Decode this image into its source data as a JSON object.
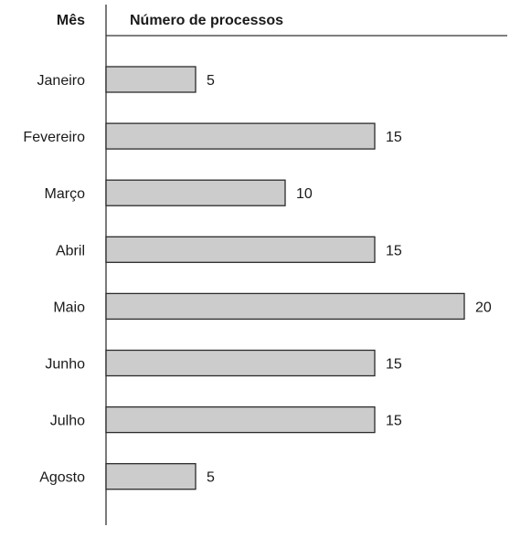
{
  "chart_data": {
    "type": "bar",
    "orientation": "horizontal",
    "category_header": "Mês",
    "value_header": "Número de processos",
    "categories": [
      "Janeiro",
      "Fevereiro",
      "Março",
      "Abril",
      "Maio",
      "Junho",
      "Julho",
      "Agosto"
    ],
    "values": [
      5,
      15,
      10,
      15,
      20,
      15,
      15,
      5
    ],
    "xlim": [
      0,
      20
    ],
    "grid": false,
    "legend": "none",
    "bar_color": "#cccccc",
    "bar_edge_color": "#2b2b2b",
    "axis_color": "#333333",
    "text_color": "#1a1a1a"
  }
}
